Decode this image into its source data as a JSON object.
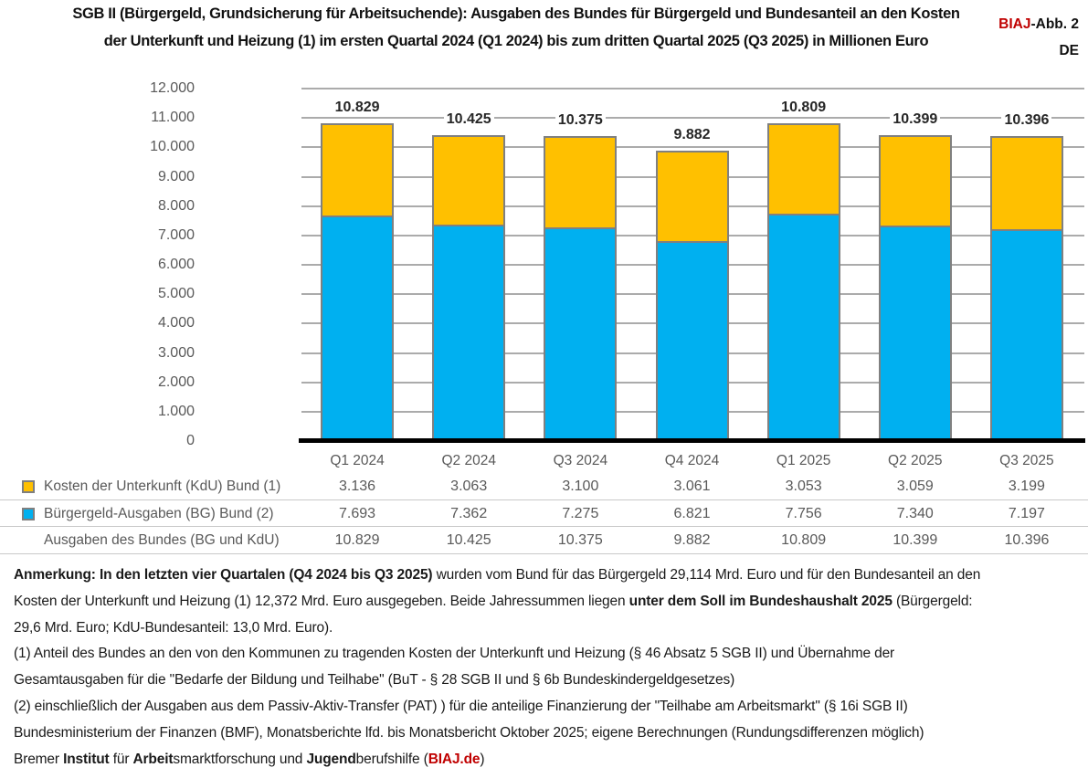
{
  "header": {
    "title_line1": "SGB II (Bürgergeld, Grundsicherung für Arbeitsuchende): Ausgaben des Bundes für Bürgergeld und Bundesanteil an den Kosten",
    "title_line2": "der Unterkunft und Heizung (1) im ersten Quartal 2024 (Q1 2024) bis zum dritten Quartal 2025 (Q3 2025) in Millionen Euro",
    "figure_brand": "BIAJ",
    "figure_label": "-Abb. 2",
    "figure_lang": "DE"
  },
  "colors": {
    "kdu_yellow": "#FFC000",
    "bg_blue": "#00B0F0",
    "brand_red": "#C00000",
    "bar_border": "#808080",
    "gridline": "#ABABAB",
    "axis_text": "#595959",
    "baseline": "#000000"
  },
  "chart_data": {
    "type": "bar",
    "stacked": true,
    "title": "SGB II (Bürgergeld, Grundsicherung für Arbeitsuchende): Ausgaben des Bundes für Bürgergeld und Bundesanteil an den Kosten der Unterkunft und Heizung (1) im ersten Quartal 2024 (Q1 2024) bis zum dritten Quartal 2025 (Q3 2025) in Millionen Euro",
    "unit": "Millionen Euro",
    "grid": true,
    "legend_position": "table-below",
    "categories": [
      "Q1 2024",
      "Q2 2024",
      "Q3 2024",
      "Q4 2024",
      "Q1 2025",
      "Q2 2025",
      "Q3 2025"
    ],
    "series": [
      {
        "name": "Bürgergeld-Ausgaben (BG) Bund (2)",
        "color": "#00B0F0",
        "values": [
          7693,
          7362,
          7275,
          6821,
          7756,
          7340,
          7197
        ]
      },
      {
        "name": "Kosten der Unterkunft (KdU) Bund (1)",
        "color": "#FFC000",
        "values": [
          3136,
          3063,
          3100,
          3061,
          3053,
          3059,
          3199
        ]
      }
    ],
    "totals": [
      10829,
      10425,
      10375,
      9882,
      10809,
      10399,
      10396
    ],
    "total_labels": [
      "10.829",
      "10.425",
      "10.375",
      "9.882",
      "10.809",
      "10.399",
      "10.396"
    ],
    "ylim": [
      0,
      12000
    ],
    "ytick_step": 1000,
    "ytick_labels": [
      "12.000",
      "11.000",
      "10.000",
      "9.000",
      "8.000",
      "7.000",
      "6.000",
      "5.000",
      "4.000",
      "3.000",
      "2.000",
      "1.000",
      "0"
    ],
    "xlabel": "",
    "ylabel": ""
  },
  "table": {
    "rows": [
      {
        "label": "Kosten der Unterkunft (KdU) Bund (1)",
        "swatch": "#FFC000",
        "values": [
          "3.136",
          "3.063",
          "3.100",
          "3.061",
          "3.053",
          "3.059",
          "3.199"
        ]
      },
      {
        "label": "Bürgergeld-Ausgaben (BG) Bund (2)",
        "swatch": "#00B0F0",
        "values": [
          "7.693",
          "7.362",
          "7.275",
          "6.821",
          "7.756",
          "7.340",
          "7.197"
        ]
      },
      {
        "label": "Ausgaben des Bundes (BG und KdU)",
        "swatch": null,
        "values": [
          "10.829",
          "10.425",
          "10.375",
          "9.882",
          "10.809",
          "10.399",
          "10.396"
        ]
      }
    ]
  },
  "footnotes": [
    [
      {
        "b": true,
        "t": "Anmerkung: In den letzten vier Quartalen (Q4 2024 bis Q3 2025)"
      },
      {
        "t": " wurden vom Bund für das Bürgergeld 29,114 Mrd. Euro und für den Bundesanteil an den"
      }
    ],
    [
      {
        "t": "Kosten der Unterkunft und Heizung (1) 12,372 Mrd. Euro ausgegeben. Beide Jahressummen liegen "
      },
      {
        "b": true,
        "t": "unter dem Soll im Bundeshaushalt 2025"
      },
      {
        "t": " (Bürgergeld:"
      }
    ],
    [
      {
        "t": "29,6 Mrd. Euro; KdU-Bundesanteil: 13,0 Mrd. Euro)."
      }
    ],
    [
      {
        "t": "(1) Anteil des Bundes an den von den Kommunen zu tragenden Kosten der Unterkunft und Heizung (§ 46 Absatz 5 SGB II) und Übernahme der"
      }
    ],
    [
      {
        "t": "Gesamtausgaben für die \"Bedarfe der Bildung und Teilhabe\" (BuT - § 28 SGB II und § 6b Bundeskindergeldgesetzes)"
      }
    ],
    [
      {
        "t": "(2) einschließlich der Ausgaben aus dem Passiv-Aktiv-Transfer (PAT) ) für die anteilige Finanzierung der \"Teilhabe am Arbeitsmarkt\" (§ 16i SGB II)"
      }
    ],
    [
      {
        "t": "Bundesministerium der Finanzen (BMF), Monatsberichte lfd. bis Monatsbericht Oktober 2025; eigene Berechnungen (Rundungsdifferenzen möglich)"
      }
    ],
    [
      {
        "t": "Bremer "
      },
      {
        "b": true,
        "t": "Institut"
      },
      {
        "t": " für "
      },
      {
        "b": true,
        "t": "Arbeit"
      },
      {
        "t": "smarktforschung und "
      },
      {
        "b": true,
        "t": "Jugend"
      },
      {
        "t": "berufshilfe ("
      },
      {
        "b": true,
        "red": true,
        "t": "BIAJ.de"
      },
      {
        "t": ")"
      }
    ]
  ]
}
